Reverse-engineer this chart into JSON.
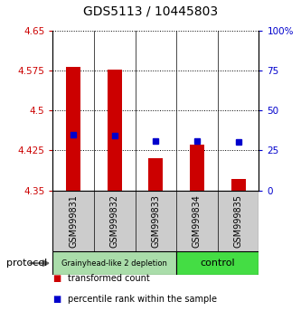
{
  "title": "GDS5113 / 10445803",
  "samples": [
    "GSM999831",
    "GSM999832",
    "GSM999833",
    "GSM999834",
    "GSM999835"
  ],
  "bar_bottoms": [
    4.35,
    4.35,
    4.35,
    4.35,
    4.35
  ],
  "bar_tops": [
    4.582,
    4.576,
    4.41,
    4.435,
    4.372
  ],
  "percentile_values": [
    4.455,
    4.452,
    4.443,
    4.443,
    4.441
  ],
  "ylim": [
    4.35,
    4.65
  ],
  "yticks": [
    4.35,
    4.425,
    4.5,
    4.575,
    4.65
  ],
  "ytick_labels": [
    "4.35",
    "4.425",
    "4.5",
    "4.575",
    "4.65"
  ],
  "right_yticks": [
    0,
    25,
    50,
    75,
    100
  ],
  "right_ytick_labels": [
    "0",
    "25",
    "50",
    "75",
    "100%"
  ],
  "bar_color": "#cc0000",
  "percentile_color": "#0000cc",
  "group1_label": "Grainyhead-like 2 depletion",
  "group1_color": "#aaddaa",
  "group2_label": "control",
  "group2_color": "#44dd44",
  "protocol_label": "protocol",
  "legend_items": [
    {
      "color": "#cc0000",
      "label": "transformed count"
    },
    {
      "color": "#0000cc",
      "label": "percentile rank within the sample"
    }
  ],
  "bg_color": "#ffffff",
  "tick_area_color": "#cccccc"
}
